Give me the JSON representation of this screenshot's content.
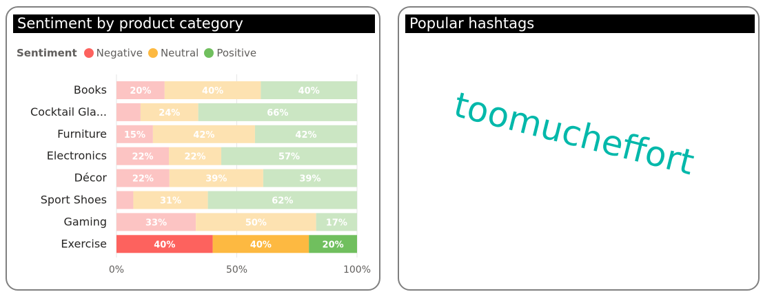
{
  "left_panel": {
    "title": "Sentiment by product category",
    "legend_title": "Sentiment",
    "legend": [
      {
        "label": "Negative",
        "color": "#fd625e"
      },
      {
        "label": "Neutral",
        "color": "#fdb941"
      },
      {
        "label": "Positive",
        "color": "#70bf5e"
      }
    ]
  },
  "right_panel": {
    "title": "Popular hashtags",
    "hashtag": "toomucheffort"
  },
  "chart_data": {
    "type": "bar",
    "orientation": "horizontal",
    "stacked": "100%",
    "categories": [
      "Books",
      "Cocktail Gla...",
      "Furniture",
      "Electronics",
      "Décor",
      "Sport Shoes",
      "Gaming",
      "Exercise"
    ],
    "series": [
      {
        "name": "Negative",
        "values": [
          20,
          10,
          15,
          22,
          22,
          7,
          33,
          40
        ],
        "labels": [
          "20%",
          "",
          "15%",
          "22%",
          "22%",
          "",
          "33%",
          "40%"
        ],
        "color": "#fd625e",
        "faded": "#fcc4c3"
      },
      {
        "name": "Neutral",
        "values": [
          40,
          24,
          42,
          22,
          39,
          31,
          50,
          40
        ],
        "labels": [
          "40%",
          "24%",
          "42%",
          "22%",
          "39%",
          "31%",
          "50%",
          "40%"
        ],
        "color": "#fdb941",
        "faded": "#fde2b1"
      },
      {
        "name": "Positive",
        "values": [
          40,
          66,
          42,
          57,
          39,
          62,
          17,
          20
        ],
        "labels": [
          "40%",
          "66%",
          "42%",
          "57%",
          "39%",
          "62%",
          "17%",
          "20%"
        ],
        "color": "#70bf5e",
        "faded": "#cbe6c3"
      }
    ],
    "highlighted_category": "Exercise",
    "x_ticks": [
      "0%",
      "50%",
      "100%"
    ],
    "xlim": [
      0,
      100
    ],
    "legend_position": "top-left"
  }
}
